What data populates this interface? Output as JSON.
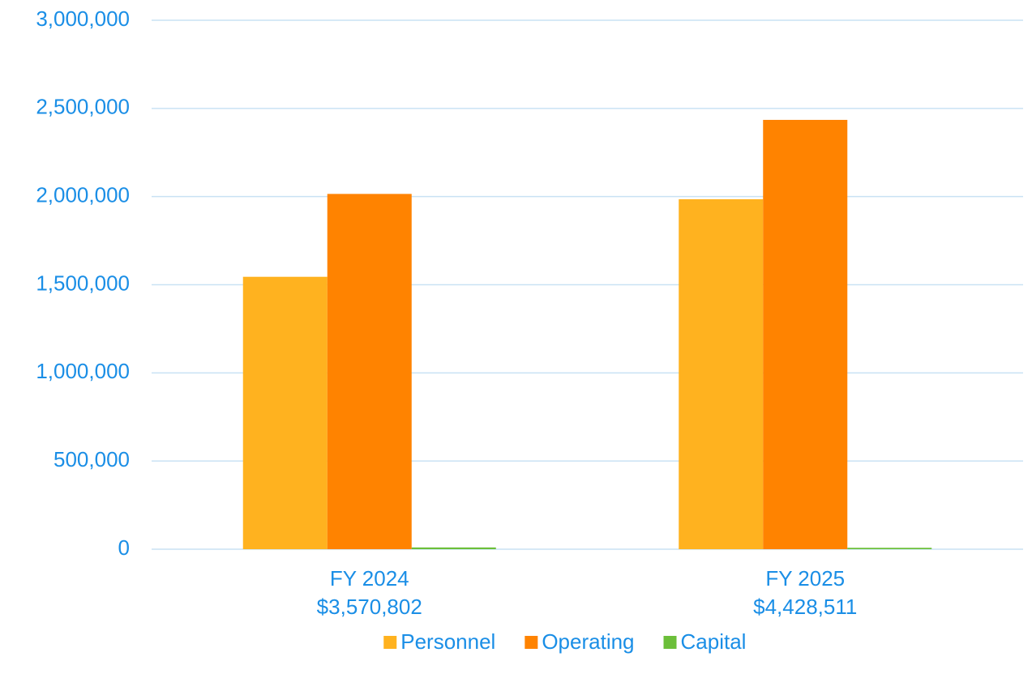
{
  "chart_data": {
    "type": "bar",
    "categories": [
      "FY 2024",
      "FY 2025"
    ],
    "total_labels": [
      "$3,570,802",
      "$4,428,511"
    ],
    "series": [
      {
        "name": "Personnel",
        "color": "#ffb21f",
        "values": [
          1545000,
          1985000
        ]
      },
      {
        "name": "Operating",
        "color": "#ff8300",
        "values": [
          2015000,
          2435000
        ]
      },
      {
        "name": "Capital",
        "color": "#6cbf3a",
        "values": [
          10000,
          8000
        ]
      }
    ],
    "ylim": [
      0,
      3000000
    ],
    "yticks": [
      0,
      {
        "value": 500000,
        "label": "500,000"
      },
      {
        "value": 1000000,
        "label": "1,000,000"
      },
      {
        "value": 1500000,
        "label": "1,500,000"
      },
      {
        "value": 2000000,
        "label": "2,000,000"
      },
      {
        "value": 2500000,
        "label": "2,500,000"
      },
      {
        "value": 3000000,
        "label": "3,000,000"
      }
    ],
    "grid": true,
    "legend": "bottom"
  }
}
